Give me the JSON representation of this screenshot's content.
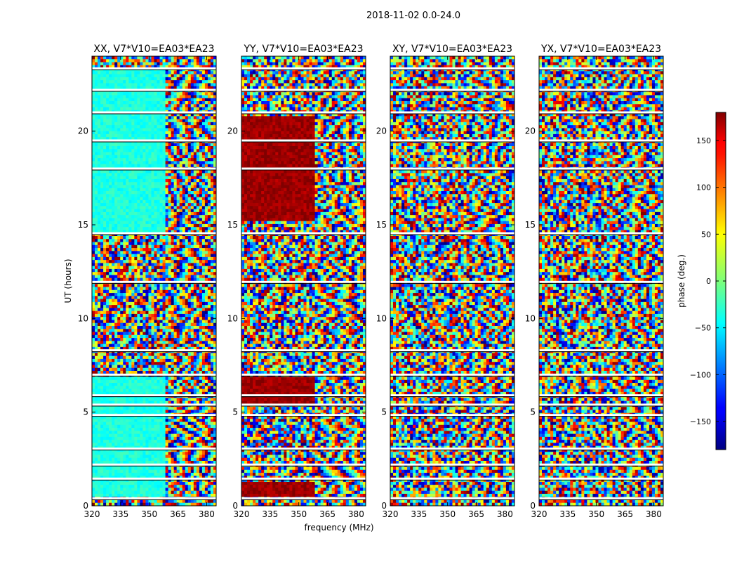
{
  "figure": {
    "suptitle": "2018-11-02 0.0-24.0",
    "xlabel": "frequency (MHz)",
    "ylabel": "UT (hours)",
    "colorbar_label": "phase (deg.)"
  },
  "chart_data": {
    "type": "heatmap",
    "panels": [
      {
        "title": "XX, V7*V10=EA03*EA23",
        "coherent_hours": [
          [
            0.5,
            6.9
          ],
          [
            14.5,
            23.3
          ]
        ],
        "coherent_phase_deg": -35
      },
      {
        "title": "YY, V7*V10=EA03*EA23",
        "coherent_hours": [
          [
            5.5,
            6.9
          ],
          [
            15.2,
            20.8
          ],
          [
            0.5,
            1.3
          ]
        ],
        "coherent_phase_deg": 170
      },
      {
        "title": "XY, V7*V10=EA03*EA23",
        "coherent_hours": [],
        "coherent_phase_deg": 0
      },
      {
        "title": "YX, V7*V10=EA03*EA23",
        "coherent_hours": [],
        "coherent_phase_deg": 0
      }
    ],
    "x": {
      "range": [
        320,
        385
      ],
      "ticks": [
        320,
        335,
        350,
        365,
        380
      ],
      "tick_labels": [
        "320",
        "335",
        "350",
        "365",
        "380"
      ]
    },
    "y": {
      "range": [
        0,
        24
      ],
      "ticks": [
        0,
        5,
        10,
        15,
        20
      ],
      "tick_labels": [
        "0",
        "5",
        "10",
        "15",
        "20"
      ]
    },
    "colorbar": {
      "range": [
        -180,
        180
      ],
      "colormap": "jet",
      "ticks": [
        -150,
        -100,
        -50,
        0,
        50,
        100,
        150
      ],
      "tick_labels": [
        "−150",
        "−100",
        "−50",
        "0",
        "50",
        "100",
        "150"
      ]
    },
    "flagged_gap_hours": [
      0.4,
      1.45,
      2.2,
      3.05,
      4.85,
      5.4,
      5.9,
      7.0,
      8.3,
      11.95,
      14.55,
      18.0,
      19.5,
      21.0,
      22.2,
      23.35
    ]
  }
}
